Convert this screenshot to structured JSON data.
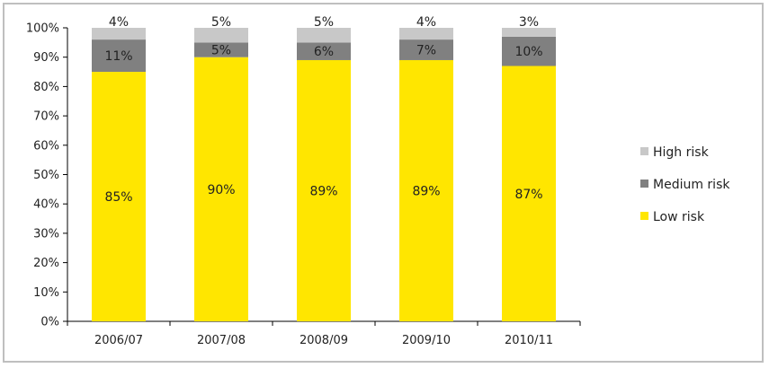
{
  "chart_data": {
    "type": "bar",
    "stacked": true,
    "normalized": true,
    "categories": [
      "2006/07",
      "2007/08",
      "2008/09",
      "2009/10",
      "2010/11"
    ],
    "series": [
      {
        "name": "Low risk",
        "values": [
          85,
          90,
          89,
          89,
          87
        ],
        "color": "#ffe600"
      },
      {
        "name": "Medium risk",
        "values": [
          11,
          5,
          6,
          7,
          10
        ],
        "color": "#808080"
      },
      {
        "name": "High risk",
        "values": [
          4,
          5,
          5,
          4,
          3
        ],
        "color": "#c8c8c8"
      }
    ],
    "ylim": [
      0,
      100
    ],
    "y_ticks": [
      "0%",
      "10%",
      "20%",
      "30%",
      "40%",
      "50%",
      "60%",
      "70%",
      "80%",
      "90%",
      "100%"
    ],
    "value_format": "percent",
    "grid": false,
    "legend": {
      "placement": "right",
      "entries": [
        "High risk",
        "Medium risk",
        "Low risk"
      ]
    }
  }
}
